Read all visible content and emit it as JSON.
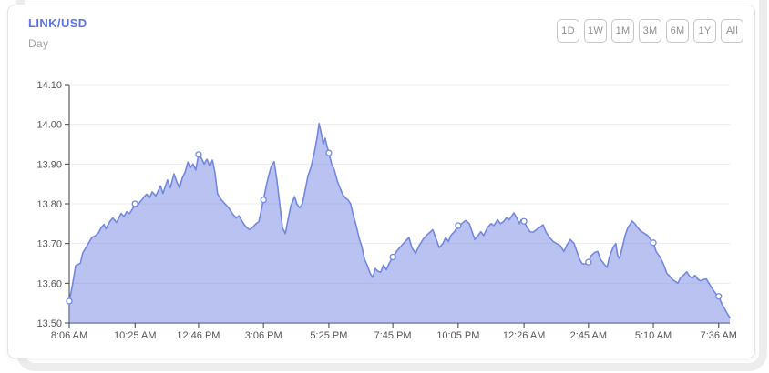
{
  "header": {
    "title": "LINK/USD",
    "subtitle": "Day"
  },
  "range_buttons": [
    {
      "label": "1D"
    },
    {
      "label": "1W"
    },
    {
      "label": "1M"
    },
    {
      "label": "3M"
    },
    {
      "label": "6M"
    },
    {
      "label": "1Y"
    },
    {
      "label": "All"
    }
  ],
  "colors": {
    "title_accent": "#5b74e4",
    "subtitle_gray": "#a2a2a6",
    "line": "#7288e0",
    "area_fill": "rgba(121,139,227,0.52)",
    "marker_fill": "#ffffff",
    "grid": "#ececec",
    "axis": "#3d3d3d",
    "axis_text": "#565656",
    "button_border": "#c6c6c6",
    "button_text": "#8f8f8f"
  },
  "chart_data": {
    "type": "area",
    "title": "LINK/USD Day price chart",
    "xlabel": "",
    "ylabel": "",
    "grid": "horizontal",
    "legend": "none",
    "x_unit": "minutes since first sample (8:06 AM)",
    "xlim": [
      0,
      1425
    ],
    "ylim": [
      13.5,
      14.1
    ],
    "y_ticks": [
      13.5,
      13.6,
      13.7,
      13.8,
      13.9,
      14.0,
      14.1
    ],
    "y_tick_decimals": 2,
    "x_ticks": [
      {
        "t": 0,
        "label": "8:06 AM"
      },
      {
        "t": 142,
        "label": "10:25 AM"
      },
      {
        "t": 279,
        "label": "12:46 PM"
      },
      {
        "t": 419,
        "label": "3:06 PM"
      },
      {
        "t": 560,
        "label": "5:25 PM"
      },
      {
        "t": 698,
        "label": "7:45 PM"
      },
      {
        "t": 839,
        "label": "10:05 PM"
      },
      {
        "t": 981,
        "label": "12:26 AM"
      },
      {
        "t": 1120,
        "label": "2:45 AM"
      },
      {
        "t": 1260,
        "label": "5:10 AM"
      },
      {
        "t": 1401,
        "label": "7:36 AM"
      }
    ],
    "marker_times": [
      0,
      142,
      279,
      419,
      560,
      698,
      839,
      981,
      1120,
      1260,
      1401
    ],
    "marker_values": [
      13.555,
      13.8,
      13.924,
      13.81,
      13.928,
      13.666,
      13.745,
      13.756,
      13.653,
      13.702,
      13.567
    ],
    "points": [
      [
        0,
        13.555
      ],
      [
        6,
        13.59
      ],
      [
        14,
        13.645
      ],
      [
        24,
        13.65
      ],
      [
        29,
        13.676
      ],
      [
        41,
        13.7
      ],
      [
        49,
        13.715
      ],
      [
        57,
        13.72
      ],
      [
        63,
        13.727
      ],
      [
        69,
        13.74
      ],
      [
        75,
        13.748
      ],
      [
        79,
        13.737
      ],
      [
        88,
        13.756
      ],
      [
        94,
        13.764
      ],
      [
        102,
        13.753
      ],
      [
        112,
        13.776
      ],
      [
        118,
        13.768
      ],
      [
        124,
        13.78
      ],
      [
        130,
        13.775
      ],
      [
        138,
        13.79
      ],
      [
        142,
        13.8
      ],
      [
        147,
        13.795
      ],
      [
        153,
        13.805
      ],
      [
        157,
        13.81
      ],
      [
        163,
        13.82
      ],
      [
        167,
        13.824
      ],
      [
        173,
        13.815
      ],
      [
        179,
        13.83
      ],
      [
        187,
        13.82
      ],
      [
        197,
        13.845
      ],
      [
        202,
        13.826
      ],
      [
        212,
        13.86
      ],
      [
        218,
        13.84
      ],
      [
        226,
        13.875
      ],
      [
        232,
        13.855
      ],
      [
        238,
        13.84
      ],
      [
        244,
        13.865
      ],
      [
        250,
        13.88
      ],
      [
        256,
        13.905
      ],
      [
        261,
        13.89
      ],
      [
        267,
        13.9
      ],
      [
        273,
        13.885
      ],
      [
        279,
        13.924
      ],
      [
        285,
        13.915
      ],
      [
        291,
        13.9
      ],
      [
        297,
        13.912
      ],
      [
        303,
        13.895
      ],
      [
        309,
        13.91
      ],
      [
        314,
        13.88
      ],
      [
        320,
        13.825
      ],
      [
        328,
        13.81
      ],
      [
        336,
        13.8
      ],
      [
        344,
        13.79
      ],
      [
        352,
        13.775
      ],
      [
        360,
        13.764
      ],
      [
        366,
        13.77
      ],
      [
        371,
        13.76
      ],
      [
        377,
        13.748
      ],
      [
        383,
        13.74
      ],
      [
        389,
        13.735
      ],
      [
        395,
        13.74
      ],
      [
        403,
        13.75
      ],
      [
        409,
        13.755
      ],
      [
        419,
        13.81
      ],
      [
        425,
        13.845
      ],
      [
        430,
        13.87
      ],
      [
        436,
        13.895
      ],
      [
        442,
        13.906
      ],
      [
        448,
        13.86
      ],
      [
        454,
        13.8
      ],
      [
        460,
        13.74
      ],
      [
        466,
        13.725
      ],
      [
        472,
        13.76
      ],
      [
        478,
        13.795
      ],
      [
        486,
        13.818
      ],
      [
        491,
        13.8
      ],
      [
        497,
        13.79
      ],
      [
        503,
        13.8
      ],
      [
        509,
        13.835
      ],
      [
        515,
        13.87
      ],
      [
        521,
        13.89
      ],
      [
        529,
        13.93
      ],
      [
        535,
        13.97
      ],
      [
        539,
        14.002
      ],
      [
        544,
        13.975
      ],
      [
        548,
        13.95
      ],
      [
        552,
        13.965
      ],
      [
        556,
        13.945
      ],
      [
        560,
        13.928
      ],
      [
        566,
        13.9
      ],
      [
        572,
        13.885
      ],
      [
        578,
        13.858
      ],
      [
        584,
        13.84
      ],
      [
        590,
        13.823
      ],
      [
        596,
        13.815
      ],
      [
        601,
        13.81
      ],
      [
        607,
        13.8
      ],
      [
        613,
        13.77
      ],
      [
        619,
        13.745
      ],
      [
        625,
        13.715
      ],
      [
        631,
        13.693
      ],
      [
        637,
        13.66
      ],
      [
        643,
        13.645
      ],
      [
        649,
        13.625
      ],
      [
        655,
        13.615
      ],
      [
        660,
        13.637
      ],
      [
        666,
        13.63
      ],
      [
        672,
        13.628
      ],
      [
        678,
        13.646
      ],
      [
        684,
        13.634
      ],
      [
        690,
        13.65
      ],
      [
        698,
        13.666
      ],
      [
        706,
        13.68
      ],
      [
        713,
        13.69
      ],
      [
        721,
        13.7
      ],
      [
        727,
        13.708
      ],
      [
        733,
        13.715
      ],
      [
        739,
        13.69
      ],
      [
        747,
        13.675
      ],
      [
        755,
        13.695
      ],
      [
        763,
        13.71
      ],
      [
        770,
        13.72
      ],
      [
        778,
        13.728
      ],
      [
        784,
        13.735
      ],
      [
        792,
        13.71
      ],
      [
        798,
        13.69
      ],
      [
        806,
        13.7
      ],
      [
        812,
        13.715
      ],
      [
        818,
        13.705
      ],
      [
        823,
        13.72
      ],
      [
        831,
        13.73
      ],
      [
        839,
        13.745
      ],
      [
        847,
        13.75
      ],
      [
        855,
        13.758
      ],
      [
        863,
        13.75
      ],
      [
        869,
        13.73
      ],
      [
        875,
        13.71
      ],
      [
        882,
        13.72
      ],
      [
        888,
        13.73
      ],
      [
        894,
        13.72
      ],
      [
        902,
        13.74
      ],
      [
        910,
        13.75
      ],
      [
        916,
        13.745
      ],
      [
        924,
        13.76
      ],
      [
        930,
        13.75
      ],
      [
        937,
        13.755
      ],
      [
        943,
        13.765
      ],
      [
        949,
        13.76
      ],
      [
        955,
        13.77
      ],
      [
        959,
        13.777
      ],
      [
        965,
        13.765
      ],
      [
        971,
        13.75
      ],
      [
        975,
        13.76
      ],
      [
        981,
        13.756
      ],
      [
        988,
        13.74
      ],
      [
        994,
        13.73
      ],
      [
        1000,
        13.728
      ],
      [
        1008,
        13.735
      ],
      [
        1014,
        13.74
      ],
      [
        1022,
        13.747
      ],
      [
        1028,
        13.73
      ],
      [
        1036,
        13.715
      ],
      [
        1044,
        13.705
      ],
      [
        1051,
        13.7
      ],
      [
        1059,
        13.695
      ],
      [
        1067,
        13.68
      ],
      [
        1073,
        13.695
      ],
      [
        1081,
        13.71
      ],
      [
        1089,
        13.7
      ],
      [
        1095,
        13.68
      ],
      [
        1101,
        13.66
      ],
      [
        1106,
        13.65
      ],
      [
        1112,
        13.648
      ],
      [
        1120,
        13.653
      ],
      [
        1126,
        13.67
      ],
      [
        1134,
        13.678
      ],
      [
        1140,
        13.68
      ],
      [
        1146,
        13.66
      ],
      [
        1154,
        13.648
      ],
      [
        1160,
        13.64
      ],
      [
        1165,
        13.665
      ],
      [
        1173,
        13.69
      ],
      [
        1179,
        13.7
      ],
      [
        1183,
        13.67
      ],
      [
        1187,
        13.662
      ],
      [
        1193,
        13.69
      ],
      [
        1199,
        13.72
      ],
      [
        1205,
        13.74
      ],
      [
        1211,
        13.75
      ],
      [
        1214,
        13.757
      ],
      [
        1220,
        13.75
      ],
      [
        1226,
        13.74
      ],
      [
        1232,
        13.732
      ],
      [
        1240,
        13.726
      ],
      [
        1248,
        13.72
      ],
      [
        1254,
        13.71
      ],
      [
        1260,
        13.702
      ],
      [
        1266,
        13.68
      ],
      [
        1272,
        13.67
      ],
      [
        1277,
        13.66
      ],
      [
        1283,
        13.645
      ],
      [
        1289,
        13.625
      ],
      [
        1295,
        13.618
      ],
      [
        1301,
        13.61
      ],
      [
        1307,
        13.605
      ],
      [
        1313,
        13.6
      ],
      [
        1319,
        13.615
      ],
      [
        1325,
        13.62
      ],
      [
        1332,
        13.629
      ],
      [
        1338,
        13.618
      ],
      [
        1344,
        13.613
      ],
      [
        1350,
        13.62
      ],
      [
        1356,
        13.61
      ],
      [
        1362,
        13.606
      ],
      [
        1368,
        13.609
      ],
      [
        1374,
        13.611
      ],
      [
        1380,
        13.6
      ],
      [
        1386,
        13.588
      ],
      [
        1392,
        13.578
      ],
      [
        1397,
        13.57
      ],
      [
        1401,
        13.567
      ],
      [
        1407,
        13.55
      ],
      [
        1413,
        13.537
      ],
      [
        1419,
        13.525
      ],
      [
        1425,
        13.513
      ]
    ]
  }
}
